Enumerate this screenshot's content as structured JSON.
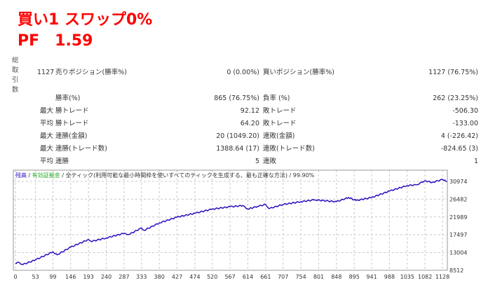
{
  "header": {
    "title_line1": "買い1 スワップ0%",
    "title_line2": "PF　1.59"
  },
  "stats": {
    "total_trades_label": "総取引数",
    "total_trades": "1127",
    "sell_label": "売りポジション(勝率%)",
    "sell_value": "0 (0.00%)",
    "buy_label": "買いポジション(勝率%)",
    "buy_value": "1127 (76.75%)",
    "rows": [
      {
        "prefix": "",
        "left_label": "勝率(%)",
        "left_value": "865 (76.75%)",
        "right_label": "負率 (%)",
        "right_value": "262 (23.25%)"
      },
      {
        "prefix": "最大",
        "left_label": "勝トレード",
        "left_value": "92.12",
        "right_label": "敗トレード",
        "right_value": "-506.30"
      },
      {
        "prefix": "平均",
        "left_label": "勝トレード",
        "left_value": "64.20",
        "right_label": "敗トレード",
        "right_value": "-133.00"
      },
      {
        "prefix": "最大",
        "left_label": "連勝(金額)",
        "left_value": "20 (1049.20)",
        "right_label": "連敗(金額)",
        "right_value": "4 (-226.42)"
      },
      {
        "prefix": "最大",
        "left_label": "連勝(トレード数)",
        "left_value": "1388.64 (17)",
        "right_label": "連敗(トレード数)",
        "right_value": "-824.65 (3)"
      },
      {
        "prefix": "平均",
        "left_label": "連勝",
        "left_value": "5",
        "right_label": "連敗",
        "right_value": "1"
      }
    ]
  },
  "chart_data": {
    "type": "line",
    "legend": {
      "balance": "残高",
      "equity": "有効証拠金",
      "model": "全ティック(利用可能な最小時間枠を使いすべてのティックを生成する、最も正確な方法)",
      "quality": "99.90%",
      "sep": " / "
    },
    "colors": {
      "balance": "#2a0fbf",
      "equity": "#22aa22",
      "grid": "#c8c8c8"
    },
    "x_ticks": [
      "0",
      "53",
      "99",
      "146",
      "193",
      "240",
      "287",
      "333",
      "380",
      "427",
      "474",
      "520",
      "567",
      "614",
      "661",
      "707",
      "754",
      "801",
      "848",
      "895",
      "941",
      "988",
      "1035",
      "1082",
      "1128"
    ],
    "y_ticks": [
      "30974",
      "26482",
      "21989",
      "17497",
      "13004",
      "8512"
    ],
    "xlim": [
      0,
      1140
    ],
    "ylim": [
      8512,
      30974
    ],
    "series": [
      {
        "name": "残高",
        "x": [
          0,
          5,
          20,
          53,
          99,
          110,
          146,
          193,
          200,
          240,
          287,
          300,
          333,
          340,
          380,
          427,
          474,
          520,
          567,
          600,
          614,
          640,
          661,
          670,
          707,
          754,
          790,
          848,
          880,
          900,
          941,
          988,
          1035,
          1060,
          1082,
          1100,
          1128,
          1140
        ],
        "y": [
          10250,
          10550,
          9970,
          11137,
          13180,
          12420,
          14346,
          16272,
          15805,
          16680,
          17850,
          17555,
          19190,
          18600,
          20470,
          21930,
          22920,
          23970,
          24555,
          24850,
          23970,
          24670,
          25140,
          24090,
          25140,
          25840,
          26300,
          25840,
          26890,
          26130,
          26890,
          28520,
          29920,
          30100,
          31150,
          30680,
          31440,
          30860
        ]
      }
    ]
  }
}
